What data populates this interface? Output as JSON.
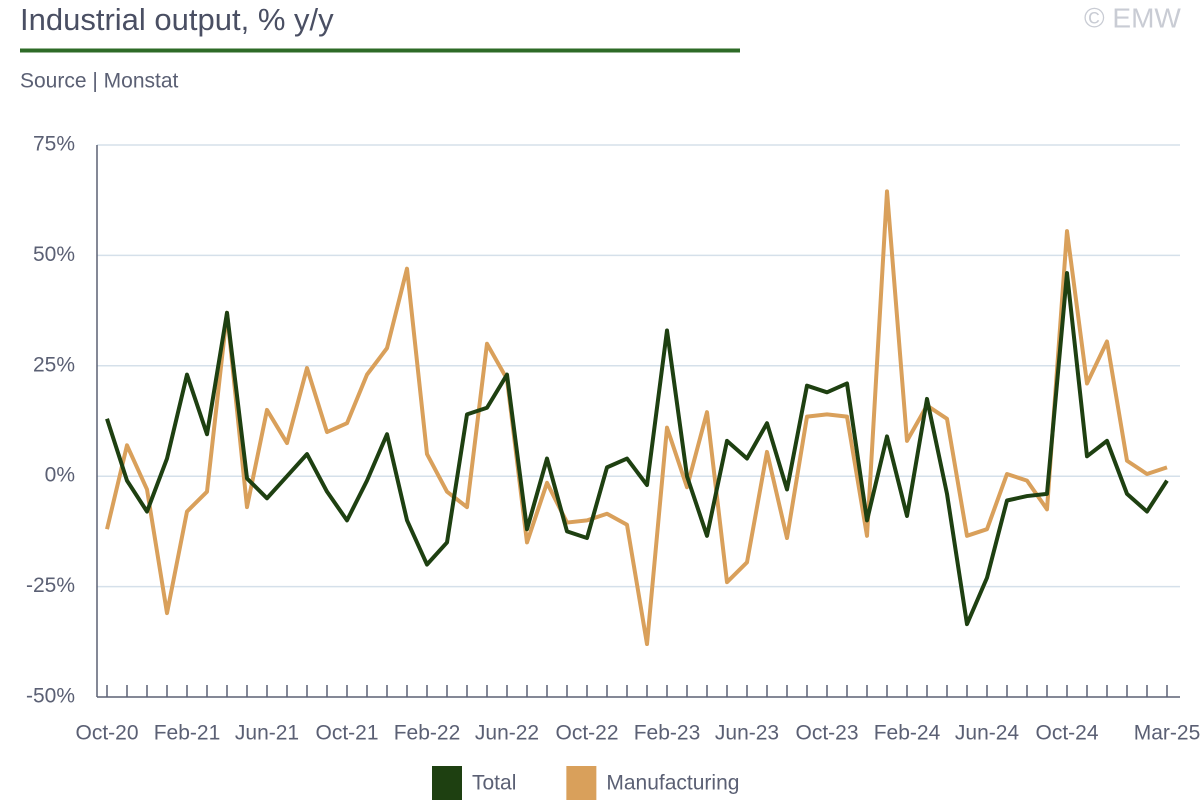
{
  "chart_data": {
    "type": "line",
    "title": "Industrial output, % y/y",
    "subtitle": "Source | Monstat",
    "credit": "© EMW",
    "categories": [
      "Oct-20",
      null,
      null,
      null,
      "Feb-21",
      null,
      null,
      null,
      "Jun-21",
      null,
      null,
      null,
      "Oct-21",
      null,
      null,
      null,
      "Feb-22",
      null,
      null,
      null,
      "Jun-22",
      null,
      null,
      null,
      "Oct-22",
      null,
      null,
      null,
      "Feb-23",
      null,
      null,
      null,
      "Jun-23",
      null,
      null,
      null,
      "Oct-23",
      null,
      null,
      null,
      "Feb-24",
      null,
      null,
      null,
      "Jun-24",
      null,
      null,
      null,
      "Oct-24",
      null,
      null,
      null,
      null,
      "Mar-25"
    ],
    "series": [
      {
        "name": "Total",
        "color": "#1e4011",
        "values": [
          13,
          -1,
          -8,
          4,
          23,
          9.5,
          37,
          -0.5,
          -5,
          0,
          5,
          -3.5,
          -10,
          -1,
          9.5,
          -10,
          -20,
          -15,
          14,
          15.5,
          23,
          -12,
          4,
          -12.5,
          -14,
          2,
          4,
          -2,
          33,
          0,
          -13.5,
          8,
          4,
          12,
          -3,
          20.5,
          19,
          21,
          -10,
          9,
          -9,
          17.5,
          -4,
          -33.5,
          -23,
          -5.5,
          -4.5,
          -4,
          46,
          4.5,
          8,
          -4,
          -8,
          -1
        ]
      },
      {
        "name": "Manufacturing",
        "color": "#d9a05b",
        "values": [
          -12,
          7,
          -3,
          -31,
          -8,
          -3.5,
          37,
          -7,
          15,
          7.5,
          24.5,
          10,
          12,
          23,
          29,
          47,
          5,
          -3.5,
          -7,
          30,
          22,
          -15,
          -1.5,
          -10.5,
          -10,
          -8.5,
          -11,
          -38,
          11,
          -2.5,
          14.5,
          -24,
          -19.5,
          5.5,
          -14,
          13.5,
          14,
          13.5,
          -13.5,
          64.5,
          8,
          16,
          13,
          -13.5,
          -12,
          0.5,
          -1,
          -7.5,
          55.5,
          21,
          30.5,
          3.5,
          0.5,
          2
        ]
      }
    ],
    "ylim": [
      -50,
      75
    ],
    "yticks": [
      {
        "value": 75,
        "label": "75%"
      },
      {
        "value": 50,
        "label": "50%"
      },
      {
        "value": 25,
        "label": "25%"
      },
      {
        "value": 0,
        "label": "0%"
      },
      {
        "value": -25,
        "label": "-25%"
      },
      {
        "value": -50,
        "label": "-50%"
      }
    ],
    "grid": true,
    "legend": "bottom"
  }
}
